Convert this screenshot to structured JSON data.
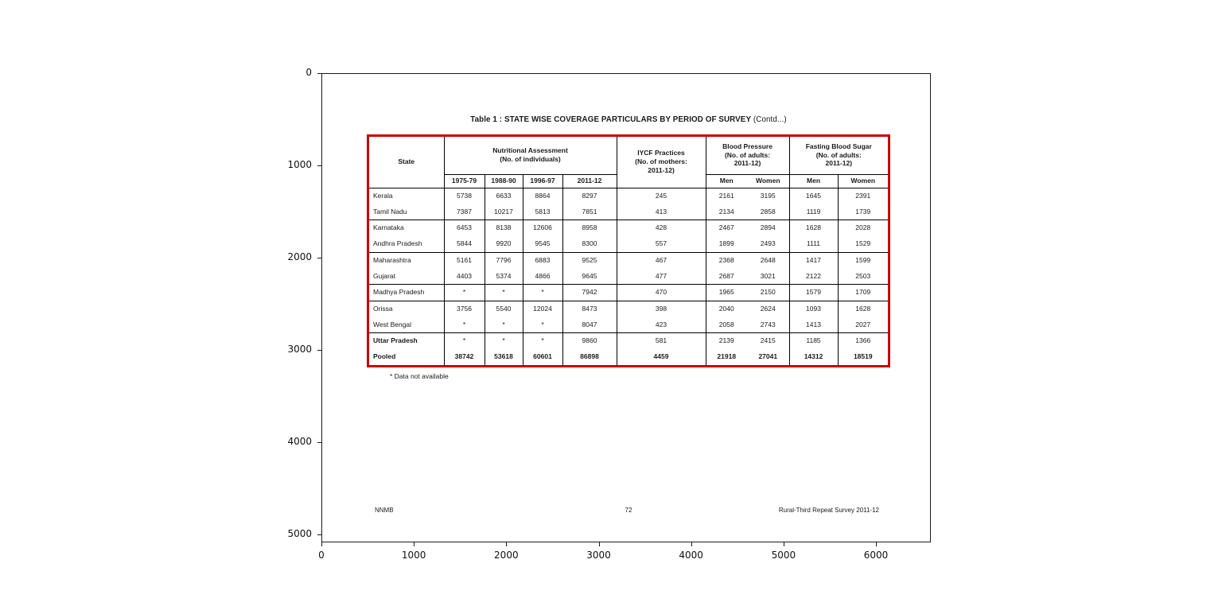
{
  "figure": {
    "x_ticks": [
      "0",
      "1000",
      "2000",
      "3000",
      "4000",
      "5000",
      "6000"
    ],
    "y_ticks": [
      "0",
      "1000",
      "2000",
      "3000",
      "4000",
      "5000"
    ]
  },
  "page": {
    "title_bold": "Table 1 : STATE WISE COVERAGE PARTICULARS BY PERIOD OF SURVEY",
    "title_suffix": " (Contd...)",
    "footnote": "* Data not available",
    "footer_left": "NNMB",
    "footer_center": "72",
    "footer_right": "Rural-Third Repeat Survey 2011-12",
    "table_border_color": "#cc0000"
  },
  "table": {
    "header": {
      "state": "State",
      "nutritional_line1": "Nutritional Assessment",
      "nutritional_line2": "(No. of individuals)",
      "years": [
        "1975-79",
        "1988-90",
        "1996-97",
        "2011-12"
      ],
      "iycf_line1": "IYCF Practices",
      "iycf_line2": "(No. of mothers:",
      "iycf_line3": "2011-12)",
      "bp_line1": "Blood Pressure",
      "bp_line2": "(No. of adults:",
      "bp_line3": "2011-12)",
      "fbs_line1": "Fasting Blood Sugar",
      "fbs_line2": "(No. of adults:",
      "fbs_line3": "2011-12)",
      "men": "Men",
      "women": "Women"
    },
    "rows": [
      {
        "state": "Kerala",
        "values": [
          "5738",
          "6633",
          "8864",
          "8297",
          "245",
          "2161",
          "3195",
          "1645",
          "2391"
        ],
        "bold": false,
        "state_bold": false,
        "group_end": false
      },
      {
        "state": "Tamil Nadu",
        "values": [
          "7387",
          "10217",
          "5813",
          "7851",
          "413",
          "2134",
          "2858",
          "1119",
          "1739"
        ],
        "bold": false,
        "state_bold": false,
        "group_end": true
      },
      {
        "state": "Karnataka",
        "values": [
          "6453",
          "8138",
          "12606",
          "8958",
          "428",
          "2467",
          "2894",
          "1628",
          "2028"
        ],
        "bold": false,
        "state_bold": false,
        "group_end": false
      },
      {
        "state": "Andhra Pradesh",
        "values": [
          "5844",
          "9920",
          "9545",
          "8300",
          "557",
          "1899",
          "2493",
          "1111",
          "1529"
        ],
        "bold": false,
        "state_bold": false,
        "group_end": true
      },
      {
        "state": "Maharashtra",
        "values": [
          "5161",
          "7796",
          "6883",
          "9525",
          "467",
          "2368",
          "2648",
          "1417",
          "1599"
        ],
        "bold": false,
        "state_bold": false,
        "group_end": false
      },
      {
        "state": "Gujarat",
        "values": [
          "4403",
          "5374",
          "4866",
          "9645",
          "477",
          "2687",
          "3021",
          "2122",
          "2503"
        ],
        "bold": false,
        "state_bold": false,
        "group_end": true
      },
      {
        "state": "Madhya Pradesh",
        "values": [
          "*",
          "*",
          "*",
          "7942",
          "470",
          "1965",
          "2150",
          "1579",
          "1709"
        ],
        "bold": false,
        "state_bold": false,
        "group_end": true
      },
      {
        "state": "Orissa",
        "values": [
          "3756",
          "5540",
          "12024",
          "8473",
          "398",
          "2040",
          "2624",
          "1093",
          "1628"
        ],
        "bold": false,
        "state_bold": false,
        "group_end": false
      },
      {
        "state": "West Bengal",
        "values": [
          "*",
          "*",
          "*",
          "8047",
          "423",
          "2058",
          "2743",
          "1413",
          "2027"
        ],
        "bold": false,
        "state_bold": false,
        "group_end": true
      },
      {
        "state": "Uttar Pradesh",
        "values": [
          "*",
          "*",
          "*",
          "9860",
          "581",
          "2139",
          "2415",
          "1185",
          "1366"
        ],
        "bold": false,
        "state_bold": true,
        "group_end": false
      },
      {
        "state": "Pooled",
        "values": [
          "38742",
          "53618",
          "60601",
          "86898",
          "4459",
          "21918",
          "27041",
          "14312",
          "18519"
        ],
        "bold": true,
        "state_bold": true,
        "group_end": false
      }
    ]
  }
}
